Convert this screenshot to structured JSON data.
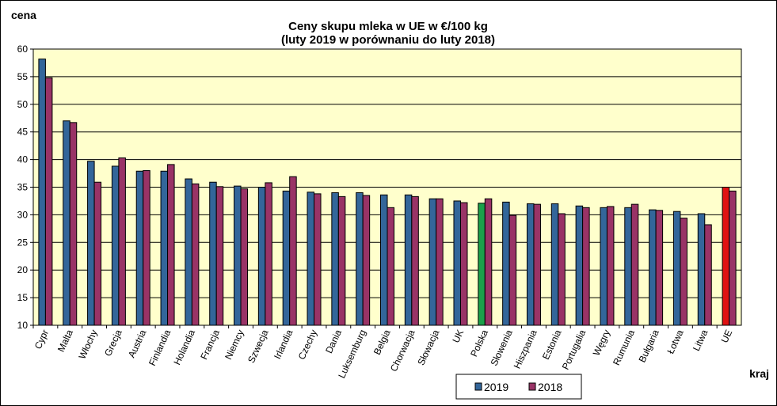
{
  "chart_data": {
    "type": "bar",
    "title": "Ceny skupu mleka  w UE w €/100 kg",
    "subtitle": "(luty 2019 w porównaniu do luty 2018)",
    "ylabel": "cena",
    "xlabel": "kraj",
    "ylim": [
      10,
      60
    ],
    "yticks": [
      10,
      15,
      20,
      25,
      30,
      35,
      40,
      45,
      50,
      55,
      60
    ],
    "grid": true,
    "legend_position": "bottom",
    "categories": [
      "Cypr",
      "Malta",
      "Włochy",
      "Grecja",
      "Austria",
      "Finlandia",
      "Holandia",
      "Francja",
      "Niemcy",
      "Szwecja",
      "Irlandia",
      "Czechy",
      "Dania",
      "Luksemburg",
      "Belgia",
      "Chorwacja",
      "Słowacja",
      "UK",
      "Polska",
      "Słowenia",
      "Hiszpania",
      "Estonia",
      "Portugalia",
      "Węgry",
      "Rumunia",
      "Bułgaria",
      "Łotwa",
      "Litwa",
      "UE"
    ],
    "series": [
      {
        "name": "2019",
        "color": "#33669a",
        "values": [
          58.2,
          47.0,
          39.7,
          38.8,
          37.9,
          37.9,
          36.5,
          35.9,
          35.2,
          35.0,
          34.3,
          34.1,
          34.0,
          34.0,
          33.6,
          33.6,
          32.9,
          32.5,
          32.1,
          32.3,
          32.0,
          32.0,
          31.6,
          31.3,
          31.3,
          30.9,
          30.6,
          30.2,
          35.0
        ]
      },
      {
        "name": "2018",
        "color": "#993366",
        "values": [
          54.8,
          46.7,
          35.9,
          40.3,
          38.0,
          39.1,
          35.6,
          35.1,
          34.7,
          35.8,
          36.9,
          33.8,
          33.3,
          33.5,
          31.3,
          33.3,
          32.9,
          32.2,
          32.9,
          29.9,
          31.9,
          30.2,
          31.3,
          31.5,
          31.9,
          30.8,
          29.4,
          28.2,
          34.3
        ]
      }
    ],
    "highlight": [
      {
        "category": "Polska",
        "series": "2019",
        "color": "#1ba04a"
      },
      {
        "category": "UE",
        "series": "2019",
        "color": "#e01212"
      }
    ],
    "plot_background": "#ffffcc",
    "gridline_color": "#000000"
  }
}
